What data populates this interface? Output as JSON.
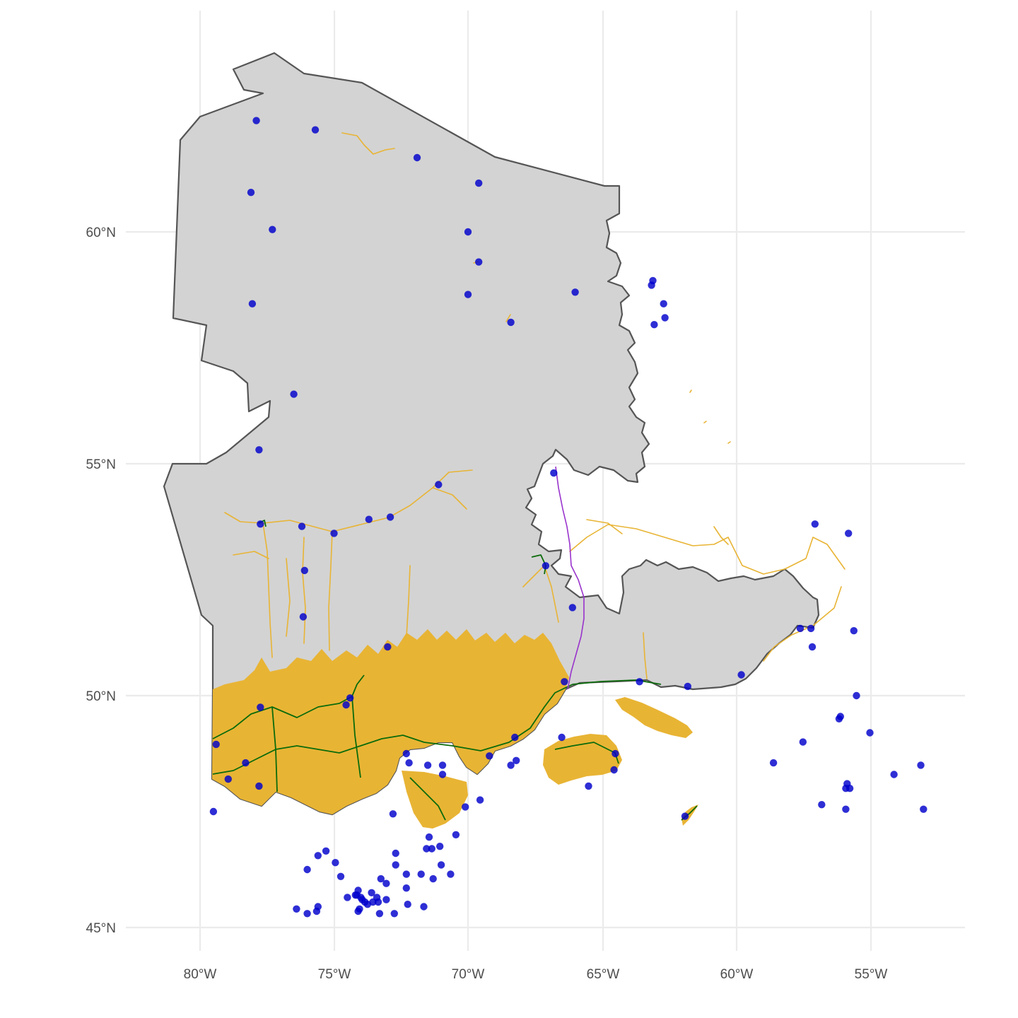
{
  "map": {
    "x_axis": {
      "ticks": [
        "80°W",
        "75°W",
        "70°W",
        "65°W",
        "60°W",
        "55°W"
      ],
      "values": [
        -80,
        -75,
        -70,
        -65,
        -60,
        -55
      ]
    },
    "y_axis": {
      "ticks": [
        "60°N",
        "55°N",
        "50°N",
        "45°N"
      ],
      "values": [
        60,
        55,
        50,
        45
      ]
    },
    "grid": true,
    "colors": {
      "land": "#d3d3d3",
      "land_border": "#555555",
      "vegetation": "#e8b434",
      "railways": "#0b6b0b",
      "boundary_line": "#9933cc",
      "stations": "#0000cc"
    },
    "stations": [
      [
        -77.9,
        62.4
      ],
      [
        -75.7,
        62.2
      ],
      [
        -71.9,
        61.6
      ],
      [
        -69.6,
        61.05
      ],
      [
        -78.1,
        60.85
      ],
      [
        -77.3,
        60.05
      ],
      [
        -70.0,
        60.0
      ],
      [
        -69.6,
        59.35
      ],
      [
        -70.0,
        58.65
      ],
      [
        -66.0,
        58.7
      ],
      [
        -63.1,
        58.95
      ],
      [
        -63.15,
        58.85
      ],
      [
        -62.7,
        58.45
      ],
      [
        -63.05,
        58.0
      ],
      [
        -62.65,
        58.15
      ],
      [
        -68.4,
        58.05
      ],
      [
        -78.05,
        58.45
      ],
      [
        -76.5,
        56.5
      ],
      [
        -77.8,
        55.3
      ],
      [
        -71.1,
        54.55
      ],
      [
        -66.8,
        54.8
      ],
      [
        -76.2,
        53.65
      ],
      [
        -75.0,
        53.5
      ],
      [
        -73.7,
        53.8
      ],
      [
        -72.9,
        53.85
      ],
      [
        -77.75,
        53.7
      ],
      [
        -76.1,
        52.7
      ],
      [
        -67.1,
        52.8
      ],
      [
        -66.1,
        51.9
      ],
      [
        -76.15,
        51.7
      ],
      [
        -73.0,
        51.05
      ],
      [
        -66.4,
        50.3
      ],
      [
        -63.6,
        50.3
      ],
      [
        -61.8,
        50.2
      ],
      [
        -59.8,
        50.45
      ],
      [
        -57.6,
        51.45
      ],
      [
        -57.2,
        51.45
      ],
      [
        -57.15,
        51.05
      ],
      [
        -55.6,
        51.4
      ],
      [
        -57.05,
        53.7
      ],
      [
        -55.8,
        53.5
      ],
      [
        -55.5,
        50.0
      ],
      [
        -56.1,
        49.55
      ],
      [
        -56.15,
        49.5
      ],
      [
        -55.0,
        49.2
      ],
      [
        -57.5,
        49.0
      ],
      [
        -58.6,
        48.55
      ],
      [
        -54.1,
        48.3
      ],
      [
        -53.1,
        48.5
      ],
      [
        -53.0,
        47.55
      ],
      [
        -55.9,
        47.55
      ],
      [
        -56.8,
        47.65
      ],
      [
        -55.9,
        48.0
      ],
      [
        -55.85,
        48.1
      ],
      [
        -55.75,
        48.0
      ],
      [
        -79.4,
        48.95
      ],
      [
        -78.3,
        48.55
      ],
      [
        -78.95,
        48.2
      ],
      [
        -77.8,
        48.05
      ],
      [
        -77.75,
        49.75
      ],
      [
        -74.4,
        49.95
      ],
      [
        -74.55,
        49.8
      ],
      [
        -79.5,
        47.5
      ],
      [
        -72.3,
        48.75
      ],
      [
        -72.2,
        48.55
      ],
      [
        -71.5,
        48.5
      ],
      [
        -70.95,
        48.5
      ],
      [
        -70.95,
        48.3
      ],
      [
        -69.2,
        48.7
      ],
      [
        -68.4,
        48.5
      ],
      [
        -68.2,
        48.6
      ],
      [
        -68.25,
        49.1
      ],
      [
        -66.5,
        49.1
      ],
      [
        -64.5,
        48.75
      ],
      [
        -64.55,
        48.4
      ],
      [
        -65.5,
        48.05
      ],
      [
        -69.55,
        47.75
      ],
      [
        -70.1,
        47.6
      ],
      [
        -72.8,
        47.45
      ],
      [
        -61.9,
        47.4
      ],
      [
        -71.45,
        46.95
      ],
      [
        -71.35,
        46.7
      ],
      [
        -71.55,
        46.7
      ],
      [
        -71.05,
        46.75
      ],
      [
        -70.45,
        47.0
      ],
      [
        -71.0,
        46.35
      ],
      [
        -70.65,
        46.15
      ],
      [
        -71.75,
        46.15
      ],
      [
        -72.3,
        46.15
      ],
      [
        -72.7,
        46.6
      ],
      [
        -72.7,
        46.35
      ],
      [
        -72.3,
        45.85
      ],
      [
        -72.25,
        45.5
      ],
      [
        -71.65,
        45.45
      ],
      [
        -71.3,
        46.05
      ],
      [
        -74.95,
        46.4
      ],
      [
        -75.3,
        46.65
      ],
      [
        -75.6,
        46.55
      ],
      [
        -76.0,
        46.25
      ],
      [
        -74.75,
        46.1
      ],
      [
        -73.25,
        46.05
      ],
      [
        -73.05,
        45.95
      ],
      [
        -72.75,
        45.3
      ],
      [
        -73.05,
        45.6
      ],
      [
        -73.35,
        45.55
      ],
      [
        -73.55,
        45.55
      ],
      [
        -73.75,
        45.5
      ],
      [
        -73.85,
        45.55
      ],
      [
        -74.0,
        45.65
      ],
      [
        -74.15,
        45.7
      ],
      [
        -74.5,
        45.65
      ],
      [
        -74.1,
        45.8
      ],
      [
        -73.95,
        45.6
      ],
      [
        -73.6,
        45.75
      ],
      [
        -73.4,
        45.65
      ],
      [
        -73.3,
        45.3
      ],
      [
        -74.1,
        45.35
      ],
      [
        -74.05,
        45.4
      ],
      [
        -75.6,
        45.45
      ],
      [
        -75.65,
        45.35
      ],
      [
        -76.0,
        45.3
      ],
      [
        -76.4,
        45.4
      ],
      [
        -74.2,
        45.7
      ]
    ]
  }
}
